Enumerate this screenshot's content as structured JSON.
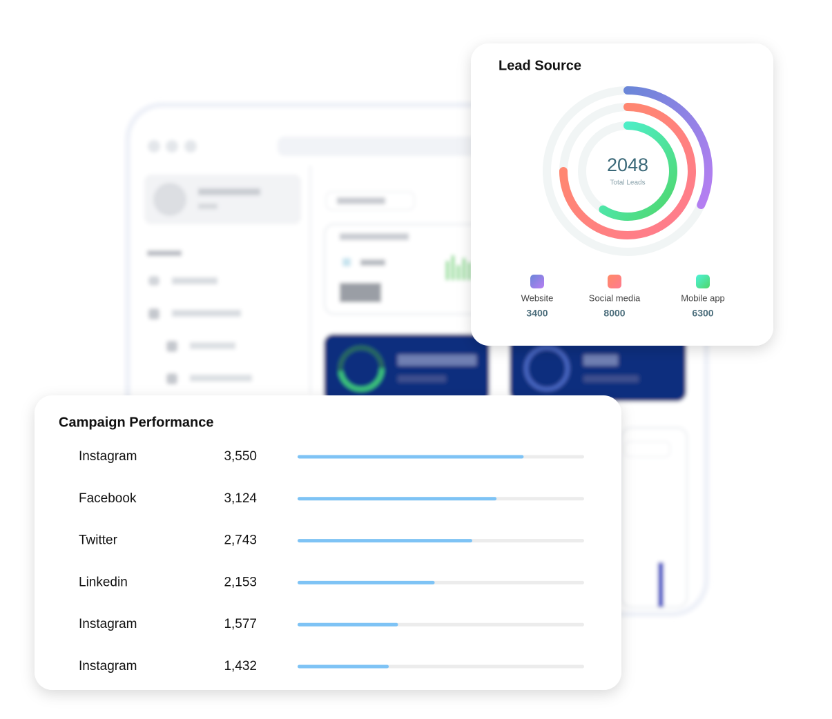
{
  "chart_data": [
    {
      "type": "radial",
      "title": "Lead Source",
      "center_value": 2048,
      "center_label": "Total Leads",
      "categories": [
        "Website",
        "Social media",
        "Mobile app"
      ],
      "values": [
        3400,
        8000,
        6300
      ],
      "colors": [
        [
          "#6b86d8",
          "#b77ef2"
        ],
        [
          "#ff8a66",
          "#ff7b90"
        ],
        [
          "#4ef2d8",
          "#4fd66a"
        ]
      ]
    },
    {
      "type": "bar",
      "title": "Campaign Performance",
      "categories": [
        "Instagram",
        "Facebook",
        "Twitter",
        "Linkedin",
        "Instagram",
        "Instagram"
      ],
      "values": [
        3550,
        3124,
        2743,
        2153,
        1577,
        1432
      ],
      "value_labels": [
        "3,550",
        "3,124",
        "2,743",
        "2,153",
        "1,577",
        "1,432"
      ],
      "xlim": [
        0,
        4500
      ],
      "color": "#7ec3f5"
    }
  ]
}
